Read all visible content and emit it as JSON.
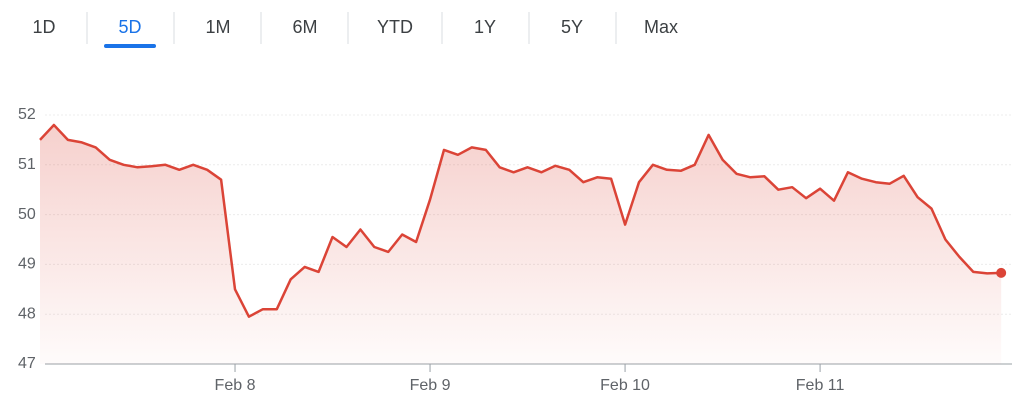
{
  "tabs": {
    "items": [
      "1D",
      "5D",
      "1M",
      "6M",
      "YTD",
      "1Y",
      "5Y",
      "Max"
    ],
    "selected": 1
  },
  "chart_data": {
    "type": "line",
    "categories": [
      null,
      null,
      null,
      null,
      null,
      null,
      null,
      null,
      null,
      null,
      null,
      null,
      null,
      null,
      "Feb 8",
      null,
      null,
      null,
      null,
      null,
      null,
      null,
      null,
      null,
      null,
      null,
      null,
      null,
      "Feb 9",
      null,
      null,
      null,
      null,
      null,
      null,
      null,
      null,
      null,
      null,
      null,
      null,
      null,
      "Feb 10",
      null,
      null,
      null,
      null,
      null,
      null,
      null,
      null,
      null,
      null,
      null,
      null,
      null,
      "Feb 11",
      null,
      null,
      null,
      null,
      null,
      null,
      null,
      null,
      null,
      null,
      null,
      null,
      null
    ],
    "values": [
      51.5,
      51.8,
      51.5,
      51.45,
      51.35,
      51.1,
      51.0,
      50.95,
      50.97,
      51.0,
      50.9,
      51.0,
      50.9,
      50.7,
      48.5,
      47.95,
      48.1,
      48.1,
      48.7,
      48.95,
      48.85,
      49.55,
      49.35,
      49.7,
      49.35,
      49.25,
      49.6,
      49.45,
      50.3,
      51.3,
      51.2,
      51.35,
      51.3,
      50.95,
      50.85,
      50.95,
      50.85,
      50.98,
      50.9,
      50.65,
      50.75,
      50.72,
      49.8,
      50.65,
      51.0,
      50.9,
      50.88,
      51.0,
      51.6,
      51.1,
      50.82,
      50.75,
      50.77,
      50.5,
      50.55,
      50.33,
      50.52,
      50.28,
      50.85,
      50.72,
      50.65,
      50.62,
      50.78,
      50.35,
      50.12,
      49.5,
      49.15,
      48.85,
      48.82,
      48.83
    ],
    "color": "#db4437",
    "ylim": [
      47,
      52
    ],
    "yticks": [
      47,
      48,
      49,
      50,
      51,
      52
    ],
    "grid": true
  }
}
